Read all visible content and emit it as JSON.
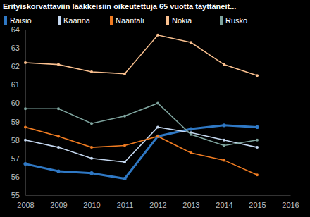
{
  "chart_data": {
    "type": "line",
    "title": "Erityiskorvattaviin lääkkeisiin oikeutettuja 65 vuotta täyttäneit...",
    "x": [
      2008,
      2009,
      2010,
      2011,
      2012,
      2013,
      2014,
      2015
    ],
    "series": [
      {
        "name": "Raisio",
        "color": "#2f78c4",
        "marker": "circle",
        "values": [
          56.7,
          56.3,
          56.2,
          55.9,
          58.2,
          58.6,
          58.8,
          58.7
        ]
      },
      {
        "name": "Kaarina",
        "color": "#c6d9f1",
        "marker": "circle",
        "values": [
          58.0,
          57.6,
          57.0,
          56.8,
          58.7,
          58.4,
          58.0,
          57.6
        ]
      },
      {
        "name": "Naantali",
        "color": "#f07c22",
        "marker": "circle",
        "values": [
          58.7,
          58.2,
          57.6,
          57.7,
          58.2,
          57.3,
          56.9,
          56.1
        ]
      },
      {
        "name": "Nokia",
        "color": "#fac08f",
        "marker": "circle",
        "values": [
          62.2,
          62.1,
          61.7,
          61.6,
          63.7,
          63.3,
          62.1,
          61.5
        ]
      },
      {
        "name": "Rusko",
        "color": "#7fa59f",
        "marker": "circle",
        "values": [
          59.7,
          59.7,
          58.9,
          59.3,
          60.0,
          58.3,
          57.7,
          58.0
        ]
      }
    ],
    "xlim": [
      2008,
      2016
    ],
    "xticks": [
      2008,
      2009,
      2010,
      2011,
      2012,
      2013,
      2014,
      2015,
      2016
    ],
    "ylim": [
      55,
      64
    ],
    "yticks": [
      55,
      56,
      57,
      58,
      59,
      60,
      61,
      62,
      63,
      64
    ],
    "grid": false,
    "legend": "top"
  }
}
